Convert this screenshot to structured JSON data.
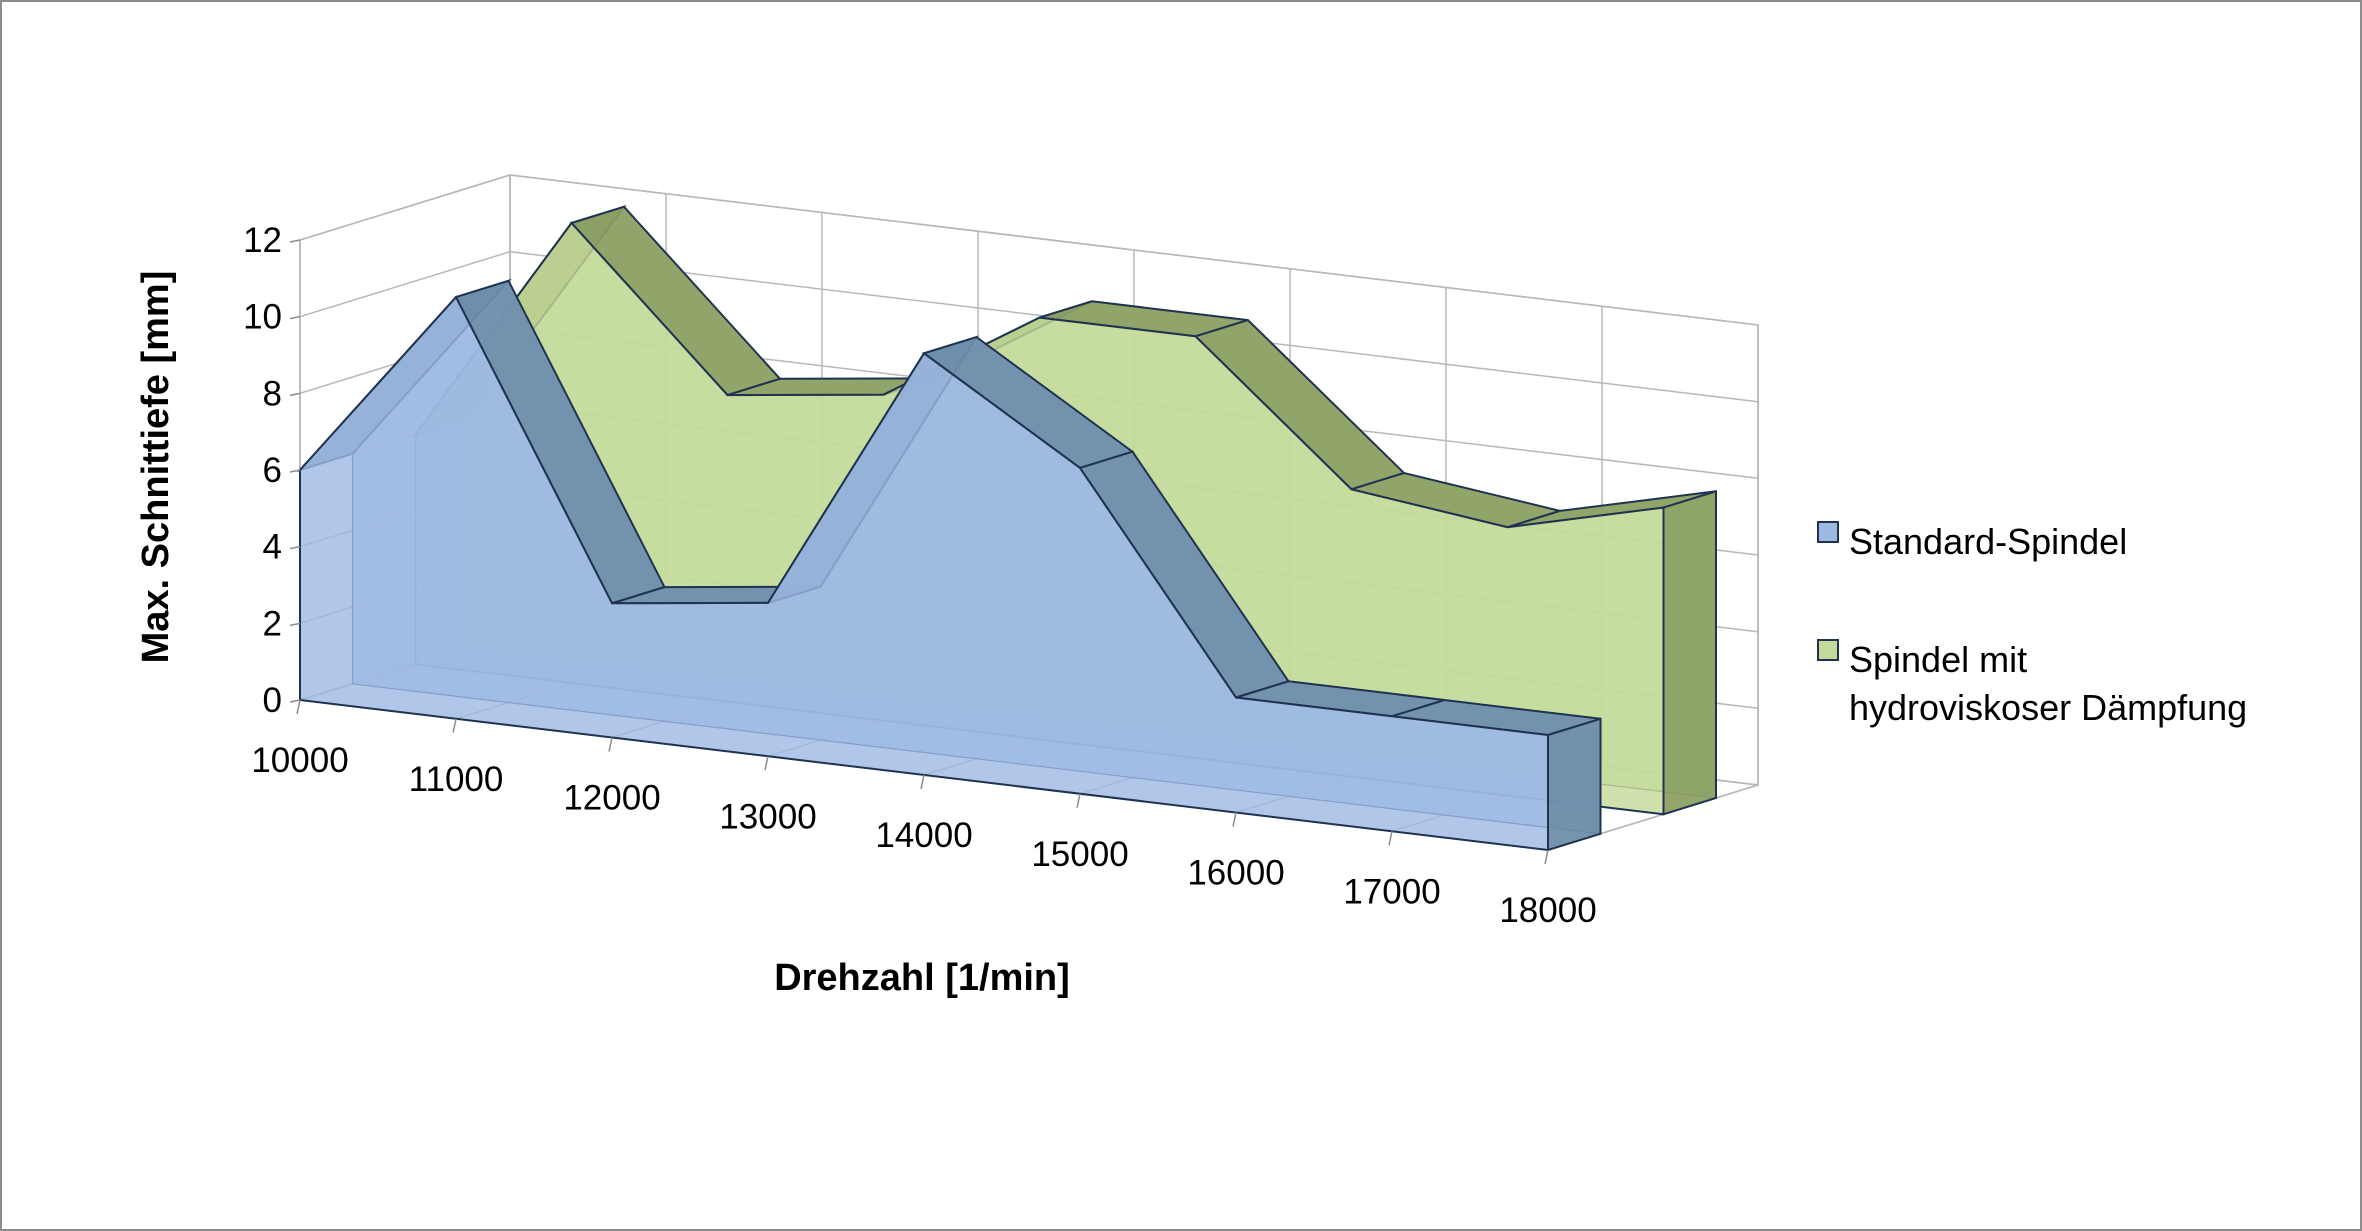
{
  "chart_data": {
    "type": "area",
    "view": "3d",
    "x": [
      10000,
      11000,
      12000,
      13000,
      14000,
      15000,
      16000,
      17000,
      18000
    ],
    "series": [
      {
        "name": "Standard-Spindel",
        "values": [
          6,
          11,
          3.5,
          4,
          11,
          8.5,
          3,
          3,
          3
        ],
        "color": "#9db9e3",
        "top_color": "#6e8eaa"
      },
      {
        "name": "Spindel mit hydroviskoser Dämpfung",
        "legend_lines": [
          "Spindel mit",
          "hydroviskoser Dämpfung"
        ],
        "values": [
          6,
          12,
          8,
          8.5,
          11,
          11,
          7.5,
          7,
          8
        ],
        "color": "#c4d99a",
        "top_color": "#8ba064"
      }
    ],
    "xlabel": "Drehzahl [1/min]",
    "ylabel": "Max. Schnittiefe [mm]",
    "yticks": [
      0,
      2,
      4,
      6,
      8,
      10,
      12
    ],
    "xticks": [
      "10000",
      "11000",
      "12000",
      "13000",
      "14000",
      "15000",
      "16000",
      "17000",
      "18000"
    ],
    "ylim": [
      0,
      12
    ],
    "grid": true,
    "legend": "right"
  }
}
